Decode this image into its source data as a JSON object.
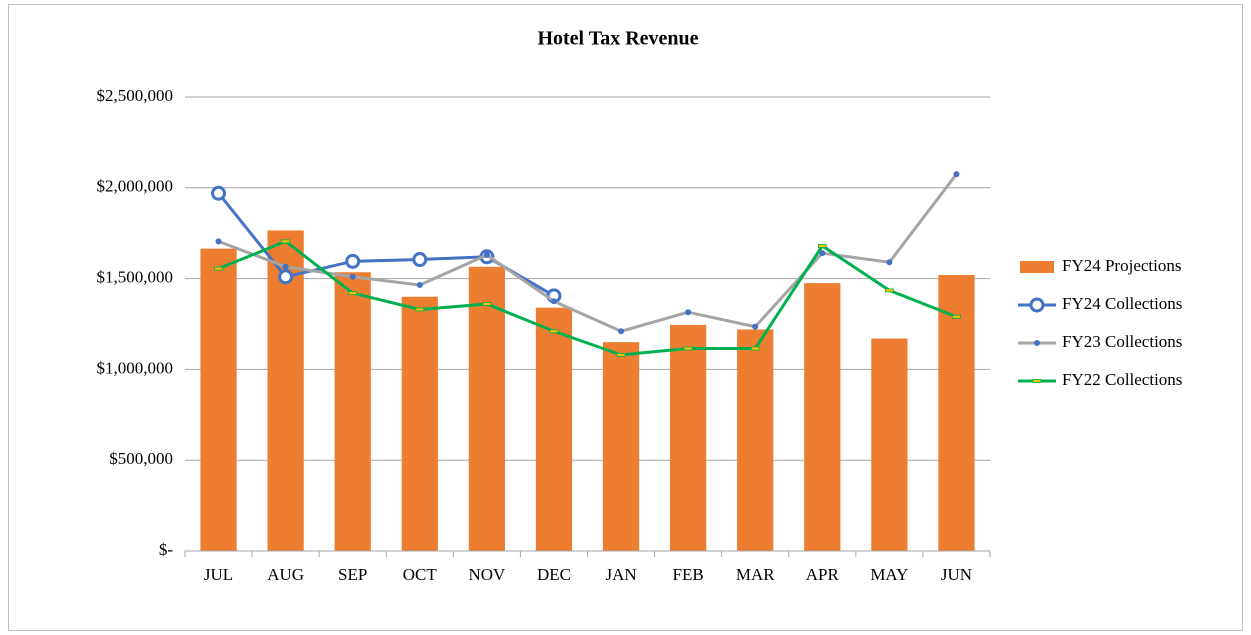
{
  "chart_data": {
    "type": "combo",
    "title": "Hotel Tax Revenue",
    "categories": [
      "JUL",
      "AUG",
      "SEP",
      "OCT",
      "NOV",
      "DEC",
      "JAN",
      "FEB",
      "MAR",
      "APR",
      "MAY",
      "JUN"
    ],
    "series": [
      {
        "name": "FY24 Projections",
        "type": "bar",
        "color": "#ed7d31",
        "values": [
          1665000,
          1765000,
          1535000,
          1400000,
          1565000,
          1340000,
          1150000,
          1245000,
          1220000,
          1475000,
          1170000,
          1520000
        ]
      },
      {
        "name": "FY24 Collections",
        "type": "line",
        "marker": "circle-open",
        "color": "#4472c4",
        "values": [
          1970000,
          1510000,
          1595000,
          1605000,
          1620000,
          1405000,
          null,
          null,
          null,
          null,
          null,
          null
        ]
      },
      {
        "name": "FY23 Collections",
        "type": "line",
        "marker": "dot",
        "color": "#a5a5a5",
        "marker_color": "#4472c4",
        "values": [
          1705000,
          1565000,
          1510000,
          1465000,
          1630000,
          1375000,
          1210000,
          1315000,
          1235000,
          1640000,
          1590000,
          2075000
        ]
      },
      {
        "name": "FY22 Collections",
        "type": "line",
        "marker": "dash",
        "color": "#00b050",
        "marker_color": "#ffc000",
        "values": [
          1555000,
          1705000,
          1420000,
          1330000,
          1360000,
          1210000,
          1080000,
          1115000,
          1115000,
          1680000,
          1435000,
          1290000
        ]
      }
    ],
    "ylim": [
      0,
      2500000
    ],
    "yticks": [
      {
        "value": 0,
        "label": "$-"
      },
      {
        "value": 500000,
        "label": "$500,000"
      },
      {
        "value": 1000000,
        "label": "$1,000,000"
      },
      {
        "value": 1500000,
        "label": "$1,500,000"
      },
      {
        "value": 2000000,
        "label": "$2,000,000"
      },
      {
        "value": 2500000,
        "label": "$2,500,000"
      }
    ],
    "grid": true,
    "legend": "right"
  }
}
